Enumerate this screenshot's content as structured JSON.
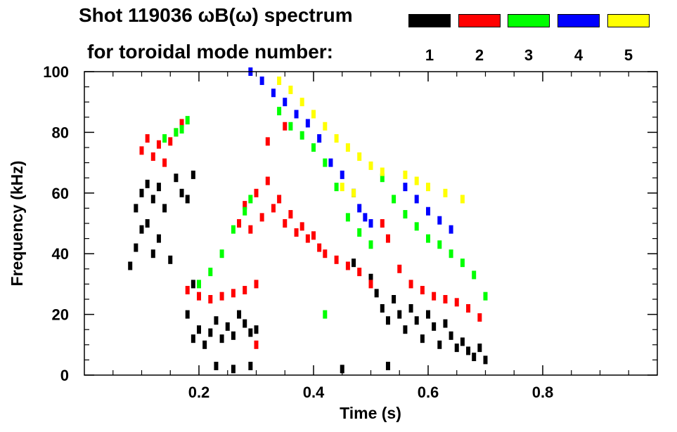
{
  "chart_data": {
    "type": "scatter",
    "title_line1": "Shot 119036 ωB(ω) spectrum",
    "title_line2": "for toroidal mode number:",
    "xlabel": "Time (s)",
    "ylabel": "Frequency (kHz)",
    "xlim": [
      0.0,
      1.0
    ],
    "ylim": [
      0,
      100
    ],
    "x_ticks": [
      "0.2",
      "0.4",
      "0.6",
      "0.8"
    ],
    "x_tick_values": [
      0.2,
      0.4,
      0.6,
      0.8
    ],
    "y_ticks": [
      "0",
      "20",
      "40",
      "60",
      "80",
      "100"
    ],
    "y_tick_values": [
      0,
      20,
      40,
      60,
      80,
      100
    ],
    "legend": [
      {
        "label": "1",
        "color": "#000000"
      },
      {
        "label": "2",
        "color": "#ff0000"
      },
      {
        "label": "3",
        "color": "#00ff00"
      },
      {
        "label": "4",
        "color": "#0000ff"
      },
      {
        "label": "5",
        "color": "#ffff00"
      }
    ],
    "series": [
      {
        "name": "n=1",
        "color": "#000000",
        "points": [
          [
            0.08,
            36
          ],
          [
            0.09,
            42
          ],
          [
            0.09,
            55
          ],
          [
            0.1,
            60
          ],
          [
            0.1,
            48
          ],
          [
            0.11,
            63
          ],
          [
            0.11,
            50
          ],
          [
            0.12,
            58
          ],
          [
            0.12,
            40
          ],
          [
            0.13,
            62
          ],
          [
            0.13,
            45
          ],
          [
            0.14,
            55
          ],
          [
            0.15,
            38
          ],
          [
            0.16,
            65
          ],
          [
            0.17,
            60
          ],
          [
            0.18,
            58
          ],
          [
            0.19,
            66
          ],
          [
            0.19,
            30
          ],
          [
            0.18,
            20
          ],
          [
            0.19,
            12
          ],
          [
            0.2,
            15
          ],
          [
            0.21,
            10
          ],
          [
            0.22,
            14
          ],
          [
            0.23,
            18
          ],
          [
            0.24,
            12
          ],
          [
            0.25,
            16
          ],
          [
            0.26,
            13
          ],
          [
            0.27,
            20
          ],
          [
            0.28,
            17
          ],
          [
            0.29,
            14
          ],
          [
            0.3,
            15
          ],
          [
            0.23,
            3
          ],
          [
            0.26,
            2
          ],
          [
            0.29,
            3
          ],
          [
            0.47,
            37
          ],
          [
            0.5,
            32
          ],
          [
            0.51,
            27
          ],
          [
            0.52,
            22
          ],
          [
            0.53,
            18
          ],
          [
            0.54,
            25
          ],
          [
            0.55,
            20
          ],
          [
            0.56,
            15
          ],
          [
            0.57,
            22
          ],
          [
            0.58,
            18
          ],
          [
            0.59,
            12
          ],
          [
            0.6,
            20
          ],
          [
            0.61,
            16
          ],
          [
            0.62,
            10
          ],
          [
            0.63,
            17
          ],
          [
            0.64,
            13
          ],
          [
            0.65,
            9
          ],
          [
            0.66,
            11
          ],
          [
            0.67,
            8
          ],
          [
            0.68,
            6
          ],
          [
            0.69,
            9
          ],
          [
            0.7,
            5
          ],
          [
            0.45,
            2
          ],
          [
            0.53,
            3
          ]
        ]
      },
      {
        "name": "n=2",
        "color": "#ff0000",
        "points": [
          [
            0.1,
            74
          ],
          [
            0.11,
            78
          ],
          [
            0.12,
            72
          ],
          [
            0.13,
            76
          ],
          [
            0.14,
            70
          ],
          [
            0.15,
            77
          ],
          [
            0.16,
            80
          ],
          [
            0.17,
            83
          ],
          [
            0.18,
            28
          ],
          [
            0.2,
            26
          ],
          [
            0.22,
            25
          ],
          [
            0.24,
            26
          ],
          [
            0.26,
            27
          ],
          [
            0.28,
            28
          ],
          [
            0.3,
            30
          ],
          [
            0.27,
            50
          ],
          [
            0.28,
            56
          ],
          [
            0.29,
            48
          ],
          [
            0.3,
            60
          ],
          [
            0.31,
            52
          ],
          [
            0.32,
            64
          ],
          [
            0.33,
            55
          ],
          [
            0.34,
            58
          ],
          [
            0.35,
            50
          ],
          [
            0.36,
            53
          ],
          [
            0.37,
            47
          ],
          [
            0.38,
            49
          ],
          [
            0.39,
            45
          ],
          [
            0.4,
            46
          ],
          [
            0.41,
            42
          ],
          [
            0.42,
            40
          ],
          [
            0.44,
            38
          ],
          [
            0.46,
            36
          ],
          [
            0.48,
            34
          ],
          [
            0.5,
            30
          ],
          [
            0.52,
            50
          ],
          [
            0.53,
            45
          ],
          [
            0.55,
            35
          ],
          [
            0.57,
            30
          ],
          [
            0.59,
            28
          ],
          [
            0.61,
            26
          ],
          [
            0.63,
            25
          ],
          [
            0.65,
            24
          ],
          [
            0.67,
            22
          ],
          [
            0.69,
            19
          ],
          [
            0.32,
            77
          ],
          [
            0.35,
            82
          ],
          [
            0.3,
            10
          ]
        ]
      },
      {
        "name": "n=3",
        "color": "#00ff00",
        "points": [
          [
            0.14,
            78
          ],
          [
            0.16,
            80
          ],
          [
            0.17,
            81
          ],
          [
            0.18,
            84
          ],
          [
            0.2,
            30
          ],
          [
            0.22,
            34
          ],
          [
            0.24,
            40
          ],
          [
            0.26,
            48
          ],
          [
            0.28,
            54
          ],
          [
            0.29,
            58
          ],
          [
            0.34,
            87
          ],
          [
            0.36,
            82
          ],
          [
            0.38,
            79
          ],
          [
            0.4,
            75
          ],
          [
            0.42,
            70
          ],
          [
            0.44,
            62
          ],
          [
            0.46,
            52
          ],
          [
            0.48,
            47
          ],
          [
            0.5,
            43
          ],
          [
            0.52,
            65
          ],
          [
            0.54,
            58
          ],
          [
            0.56,
            53
          ],
          [
            0.58,
            49
          ],
          [
            0.6,
            45
          ],
          [
            0.62,
            43
          ],
          [
            0.64,
            40
          ],
          [
            0.66,
            37
          ],
          [
            0.68,
            33
          ],
          [
            0.7,
            26
          ],
          [
            0.42,
            20
          ]
        ]
      },
      {
        "name": "n=4",
        "color": "#0000ff",
        "points": [
          [
            0.29,
            100
          ],
          [
            0.31,
            97
          ],
          [
            0.33,
            93
          ],
          [
            0.35,
            90
          ],
          [
            0.37,
            86
          ],
          [
            0.39,
            83
          ],
          [
            0.41,
            78
          ],
          [
            0.43,
            70
          ],
          [
            0.45,
            66
          ],
          [
            0.47,
            60
          ],
          [
            0.48,
            55
          ],
          [
            0.49,
            52
          ],
          [
            0.5,
            50
          ],
          [
            0.56,
            62
          ],
          [
            0.58,
            58
          ],
          [
            0.6,
            54
          ],
          [
            0.62,
            51
          ],
          [
            0.64,
            48
          ]
        ]
      },
      {
        "name": "n=5",
        "color": "#ffff00",
        "points": [
          [
            0.34,
            97
          ],
          [
            0.36,
            94
          ],
          [
            0.38,
            90
          ],
          [
            0.4,
            86
          ],
          [
            0.42,
            82
          ],
          [
            0.44,
            78
          ],
          [
            0.46,
            75
          ],
          [
            0.48,
            72
          ],
          [
            0.5,
            69
          ],
          [
            0.52,
            67
          ],
          [
            0.56,
            66
          ],
          [
            0.58,
            64
          ],
          [
            0.6,
            62
          ],
          [
            0.63,
            60
          ],
          [
            0.66,
            58
          ],
          [
            0.45,
            62
          ],
          [
            0.47,
            60
          ]
        ]
      }
    ]
  }
}
